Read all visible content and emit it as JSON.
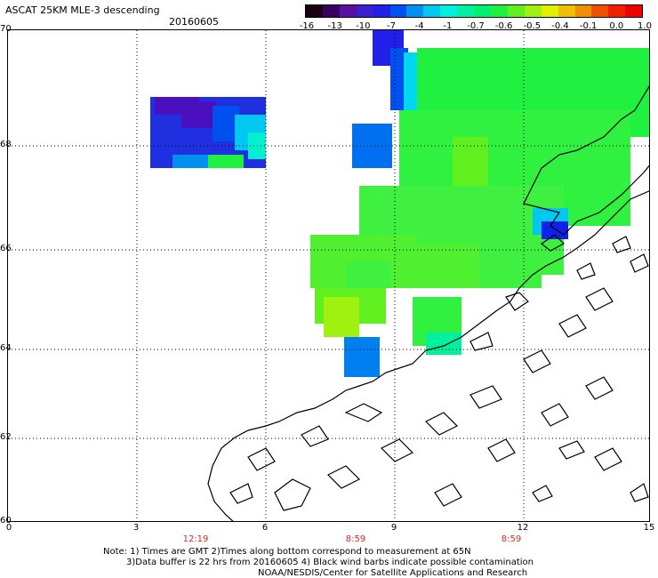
{
  "header": {
    "title": "ASCAT 25KM MLE-3 descending",
    "date": "20160605"
  },
  "colorbar": {
    "labels": [
      "-16",
      "-13",
      "-10",
      "-7",
      "-4",
      "-1",
      "-0.7",
      "-0.6",
      "-0.5",
      "-0.4",
      "-0.1",
      "0.0",
      "1.0"
    ],
    "colors": [
      "#1a0010",
      "#3a0060",
      "#5a10a0",
      "#3a20d0",
      "#2020e8",
      "#0050f0",
      "#0090f0",
      "#00c8f0",
      "#00f0e0",
      "#00f0a0",
      "#00f070",
      "#20f040",
      "#60f020",
      "#a0f010",
      "#e0f000",
      "#f0c000",
      "#f09000",
      "#f05000",
      "#f02000",
      "#f00000"
    ]
  },
  "axes": {
    "y_labels": [
      "70",
      "68",
      "66",
      "64",
      "62",
      "60"
    ],
    "x_labels": [
      "0",
      "3",
      "6",
      "9",
      "12",
      "15"
    ],
    "time_labels": [
      "12:19",
      "8:59",
      "8:59"
    ]
  },
  "legend_colors": {
    "time_red": "#d42a1a"
  },
  "notes": {
    "line1": "Note: 1) Times are GMT 2)Times along bottom correspond to measurement at 65N",
    "line2": "3)Data buffer is 22 hrs from 20160605 4) Black wind barbs indicate possible contamination",
    "line3": "NOAA/NESDIS/Center for Satellite Applications and Research"
  }
}
